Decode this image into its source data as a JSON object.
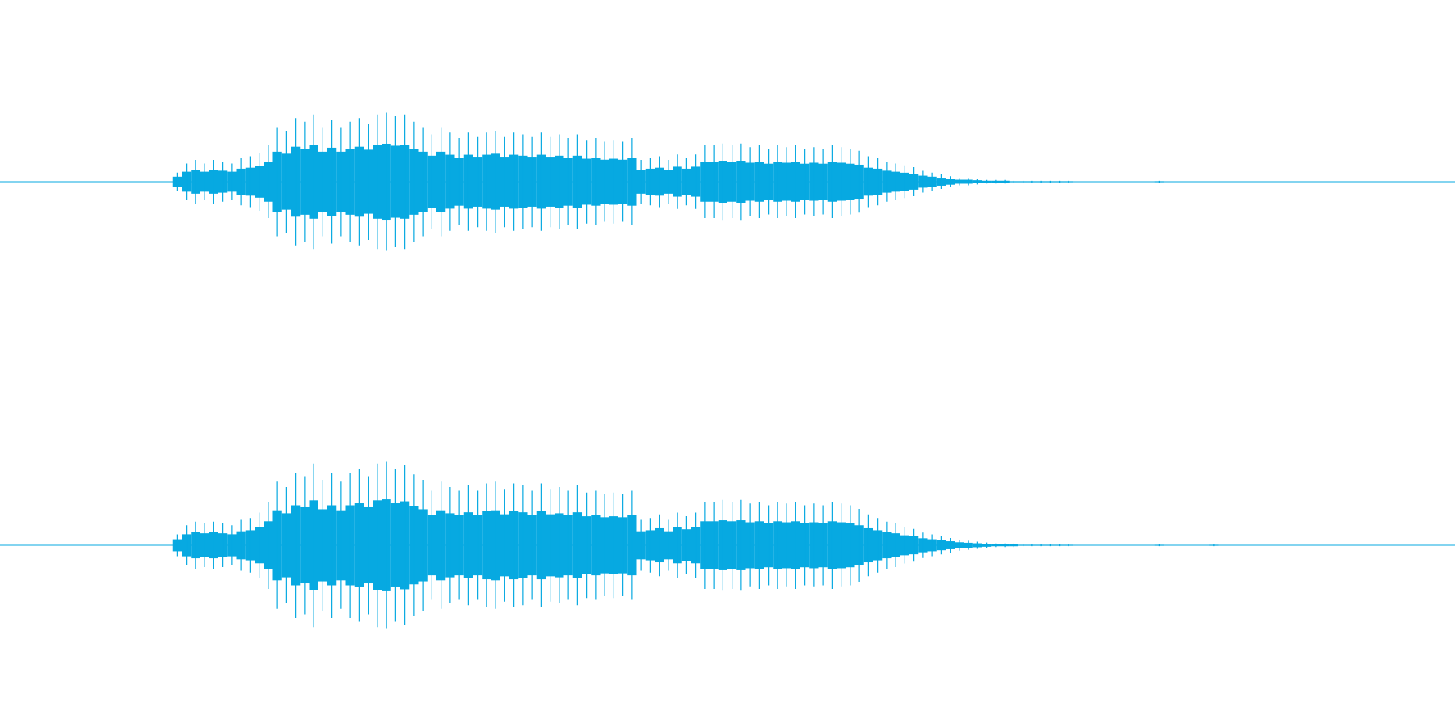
{
  "chart_data": {
    "type": "waveform",
    "ylim": [
      -1,
      1
    ],
    "series": [
      {
        "color": "#07a9e1",
        "values": [
          0,
          0,
          0,
          0,
          0,
          0,
          0,
          0,
          0,
          0,
          0,
          0,
          0,
          0,
          0,
          0,
          0,
          0,
          0,
          0.05,
          0.1,
          0.12,
          0.1,
          0.12,
          0.11,
          0.1,
          0.13,
          0.14,
          0.16,
          0.2,
          0.3,
          0.28,
          0.35,
          0.33,
          0.37,
          0.3,
          0.34,
          0.3,
          0.33,
          0.35,
          0.32,
          0.37,
          0.38,
          0.36,
          0.37,
          0.33,
          0.3,
          0.26,
          0.3,
          0.27,
          0.24,
          0.27,
          0.25,
          0.27,
          0.28,
          0.25,
          0.27,
          0.26,
          0.25,
          0.27,
          0.25,
          0.26,
          0.24,
          0.26,
          0.23,
          0.24,
          0.22,
          0.23,
          0.22,
          0.24,
          0.12,
          0.13,
          0.14,
          0.12,
          0.15,
          0.13,
          0.15,
          0.2,
          0.2,
          0.21,
          0.2,
          0.21,
          0.19,
          0.2,
          0.18,
          0.2,
          0.19,
          0.2,
          0.18,
          0.19,
          0.18,
          0.2,
          0.19,
          0.18,
          0.17,
          0.14,
          0.13,
          0.11,
          0.1,
          0.09,
          0.08,
          0.06,
          0.05,
          0.04,
          0.03,
          0.02,
          0.02,
          0.015,
          0.01,
          0.01,
          0.01,
          0.005,
          0.005,
          0.005,
          0.005,
          0.005,
          0.005,
          0.005,
          0,
          0,
          0,
          0,
          0,
          0,
          0,
          0,
          0,
          0.005,
          0,
          0,
          0,
          0,
          0,
          0,
          0,
          0,
          0,
          0,
          0,
          0,
          0,
          0,
          0,
          0,
          0,
          0,
          0,
          0,
          0,
          0,
          0,
          0,
          0,
          0,
          0,
          0,
          0,
          0,
          0,
          0
        ]
      },
      {
        "color": "#07a9e1",
        "values": [
          0,
          0,
          0,
          0,
          0,
          0,
          0,
          0,
          0,
          0,
          0,
          0,
          0,
          0,
          0,
          0,
          0,
          0,
          0,
          0.06,
          0.11,
          0.13,
          0.12,
          0.13,
          0.12,
          0.11,
          0.14,
          0.15,
          0.18,
          0.24,
          0.35,
          0.32,
          0.4,
          0.38,
          0.45,
          0.36,
          0.4,
          0.35,
          0.4,
          0.42,
          0.38,
          0.45,
          0.46,
          0.42,
          0.44,
          0.39,
          0.36,
          0.3,
          0.35,
          0.32,
          0.3,
          0.33,
          0.3,
          0.34,
          0.35,
          0.31,
          0.34,
          0.33,
          0.3,
          0.34,
          0.31,
          0.32,
          0.3,
          0.33,
          0.29,
          0.3,
          0.28,
          0.29,
          0.28,
          0.3,
          0.14,
          0.15,
          0.17,
          0.14,
          0.18,
          0.16,
          0.18,
          0.24,
          0.24,
          0.25,
          0.24,
          0.25,
          0.23,
          0.24,
          0.22,
          0.24,
          0.23,
          0.24,
          0.22,
          0.23,
          0.22,
          0.24,
          0.23,
          0.22,
          0.2,
          0.17,
          0.15,
          0.13,
          0.12,
          0.1,
          0.09,
          0.07,
          0.06,
          0.05,
          0.04,
          0.03,
          0.025,
          0.02,
          0.015,
          0.01,
          0.01,
          0.01,
          0.005,
          0.005,
          0.005,
          0.005,
          0.005,
          0.005,
          0,
          0,
          0,
          0,
          0,
          0,
          0,
          0,
          0,
          0.005,
          0,
          0,
          0,
          0,
          0,
          0.005,
          0,
          0,
          0,
          0,
          0,
          0,
          0,
          0,
          0,
          0,
          0,
          0,
          0,
          0,
          0,
          0,
          0,
          0,
          0,
          0,
          0,
          0,
          0,
          0,
          0,
          0
        ]
      }
    ]
  }
}
